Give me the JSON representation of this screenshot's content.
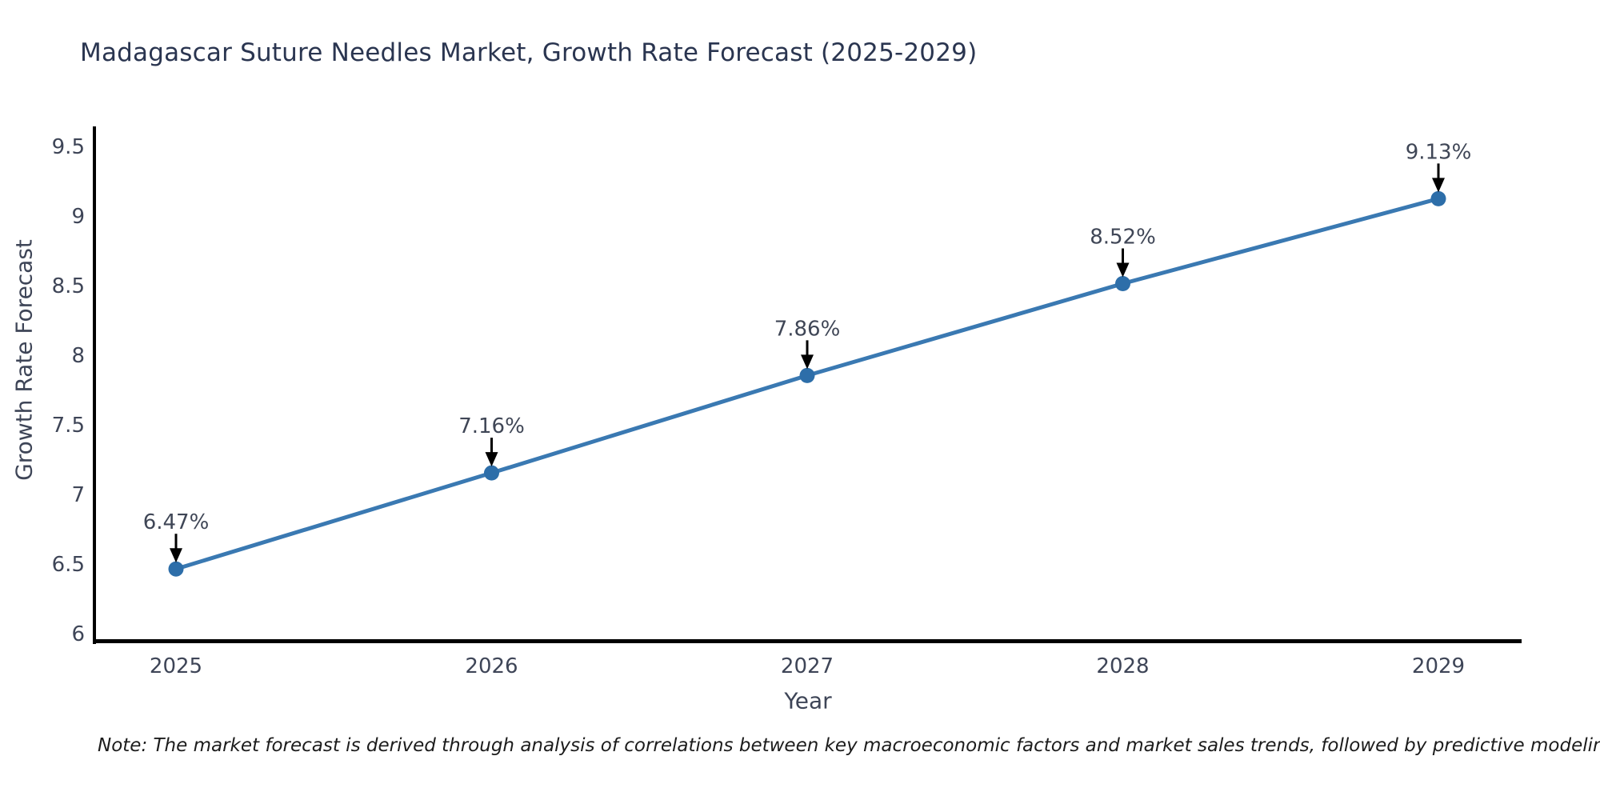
{
  "title": {
    "text": "Madagascar Suture Needles Market, Growth Rate Forecast (2025-2029)",
    "color": "#2a3550"
  },
  "note": {
    "text": "Note: The market forecast is derived through analysis of correlations between key macroeconomic factors and market sales trends, followed by predictive modeling to project future sales"
  },
  "chart_data": {
    "type": "line",
    "title": "Madagascar Suture Needles Market, Growth Rate Forecast (2025-2029)",
    "xlabel": "Year",
    "ylabel": "Growth Rate Forecast",
    "categories": [
      "2025",
      "2026",
      "2027",
      "2028",
      "2029"
    ],
    "values": [
      6.47,
      7.16,
      7.86,
      8.52,
      9.13
    ],
    "point_labels": [
      "6.47%",
      "7.16%",
      "7.86%",
      "8.52%",
      "9.13%"
    ],
    "ylim": [
      6,
      9.5
    ],
    "yticks": [
      6,
      6.5,
      7,
      7.5,
      8,
      8.5,
      9,
      9.5
    ],
    "grid": false,
    "legend_position": "none",
    "colors": {
      "line": "#3a79b2",
      "marker": "#2d6ea9",
      "spine": "#000000",
      "tick_label": "#3e4557",
      "annotation_text": "#3f4656",
      "annotation_arrow": "#000000"
    }
  }
}
